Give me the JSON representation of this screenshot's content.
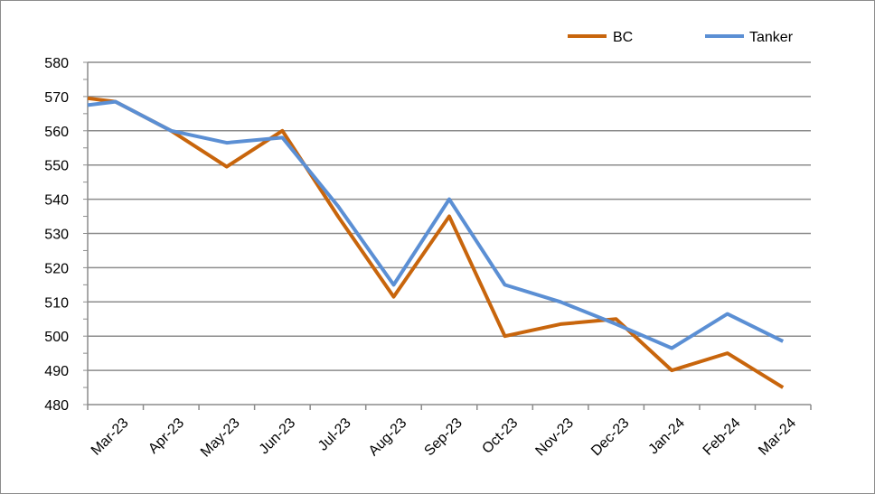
{
  "chart_data": {
    "type": "line",
    "categories": [
      "Mar-23",
      "Apr-23",
      "May-23",
      "Jun-23",
      "Jul-23",
      "Aug-23",
      "Sep-23",
      "Oct-23",
      "Nov-23",
      "Dec-23",
      "Jan-24",
      "Feb-24",
      "Mar-24"
    ],
    "x": [
      0,
      0.5,
      2,
      2.5,
      3,
      3.5,
      5.5,
      6,
      7,
      8,
      9.5,
      10,
      10.5,
      11,
      11.5
    ],
    "series": [
      {
        "name": "BC",
        "color": "#c8650c",
        "points": [
          [
            0,
            569.5
          ],
          [
            0.5,
            568.5
          ],
          [
            1.5,
            560
          ],
          [
            2.5,
            549.5
          ],
          [
            3.5,
            560
          ],
          [
            4.5,
            535
          ],
          [
            5.5,
            511.5
          ],
          [
            6.5,
            535
          ],
          [
            7.5,
            500
          ],
          [
            8.5,
            503.5
          ],
          [
            9.5,
            505
          ],
          [
            10.5,
            490
          ],
          [
            11.5,
            495
          ],
          [
            12.5,
            485
          ]
        ]
      },
      {
        "name": "Tanker",
        "color": "#5b8fd4",
        "points": [
          [
            0,
            567.5
          ],
          [
            0.5,
            568.5
          ],
          [
            1.5,
            560
          ],
          [
            2.5,
            556.5
          ],
          [
            3.5,
            558
          ],
          [
            4.5,
            538
          ],
          [
            5.5,
            515
          ],
          [
            6.5,
            540
          ],
          [
            7.5,
            515
          ],
          [
            8.5,
            510
          ],
          [
            9.5,
            503.5
          ],
          [
            10.5,
            496.5
          ],
          [
            11.5,
            506.5
          ],
          [
            12.5,
            498.5
          ]
        ]
      }
    ],
    "yticks": [
      480,
      490,
      500,
      510,
      520,
      530,
      540,
      550,
      560,
      570,
      580
    ],
    "ylim": [
      480,
      580
    ],
    "grid": "horizontal",
    "legend_position": "top-right",
    "title": "",
    "xlabel": "",
    "ylabel": ""
  }
}
